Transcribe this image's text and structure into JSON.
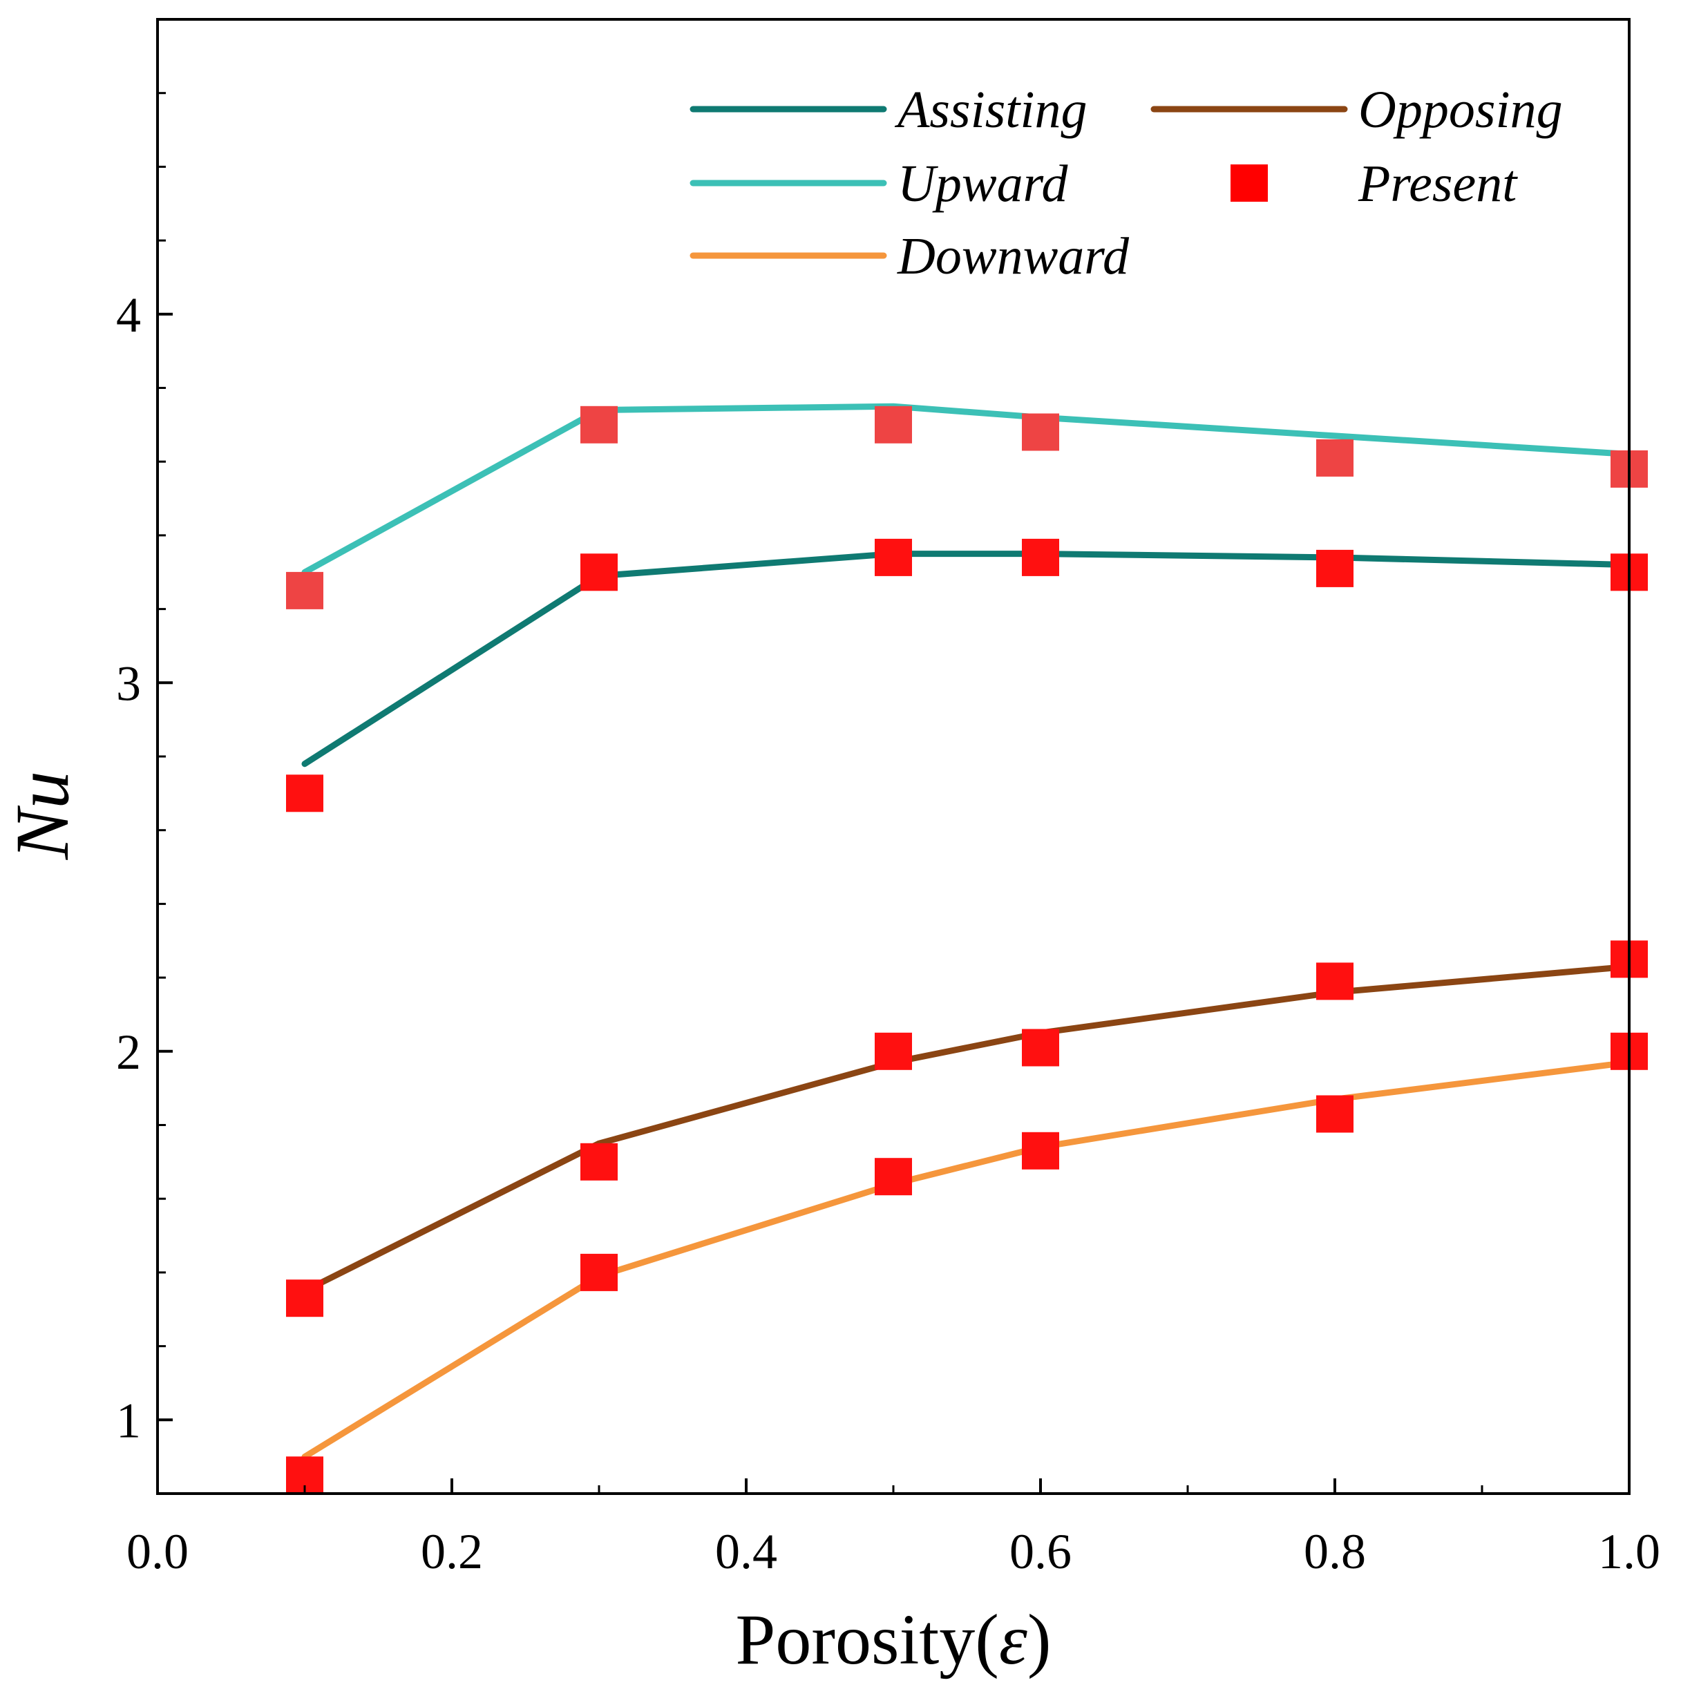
{
  "chart_data": {
    "type": "line",
    "title": "",
    "xlabel": "Porosity(ε)",
    "xlabel_parts": {
      "main": "Porosity(",
      "symbol": "ε",
      "close": ")"
    },
    "ylabel": "Nu",
    "xlim": [
      0.0,
      1.0
    ],
    "ylim": [
      0.8,
      4.8
    ],
    "xticks": [
      0.0,
      0.2,
      0.4,
      0.6,
      0.8,
      1.0
    ],
    "xtick_labels": [
      "0.0",
      "0.2",
      "0.4",
      "0.6",
      "0.8",
      "1.0"
    ],
    "yticks": [
      1,
      2,
      3,
      4
    ],
    "ytick_labels": [
      "1",
      "2",
      "3",
      "4"
    ],
    "x_minor_ticks": [
      0.1,
      0.3,
      0.5,
      0.7,
      0.9
    ],
    "y_minor_ticks": [
      1.2,
      1.4,
      1.6,
      1.8,
      2.2,
      2.4,
      2.6,
      2.8,
      3.2,
      3.4,
      3.6,
      3.8,
      4.2,
      4.4,
      4.6
    ],
    "legend_position": "top-right",
    "x": [
      0.1,
      0.3,
      0.5,
      0.6,
      0.8,
      1.0
    ],
    "series": [
      {
        "name": "Assisting",
        "color": "#0f7a72",
        "kind": "line",
        "values": [
          2.78,
          3.29,
          3.35,
          3.35,
          3.34,
          3.32
        ]
      },
      {
        "name": "Opposing",
        "color": "#8b4513",
        "kind": "line",
        "values": [
          1.35,
          1.75,
          1.97,
          2.05,
          2.16,
          2.23
        ]
      },
      {
        "name": "Upward",
        "color": "#3cc0b6",
        "kind": "line",
        "values": [
          3.3,
          3.74,
          3.75,
          3.72,
          3.67,
          3.62
        ]
      },
      {
        "name": "Downward",
        "color": "#f5963c",
        "kind": "line",
        "values": [
          0.9,
          1.39,
          1.64,
          1.74,
          1.87,
          1.97
        ]
      },
      {
        "name": "Present",
        "color": "#ff0000",
        "kind": "marker",
        "groups": [
          {
            "curve": "Upward",
            "color": "#ee4444",
            "values": [
              3.25,
              3.7,
              3.7,
              3.68,
              3.61,
              3.58
            ]
          },
          {
            "curve": "Assisting",
            "color": "#ff1010",
            "values": [
              2.7,
              3.3,
              3.34,
              3.34,
              3.31,
              3.3
            ]
          },
          {
            "curve": "Opposing",
            "color": "#ff1010",
            "values": [
              1.33,
              1.7,
              2.0,
              2.01,
              2.19,
              2.25
            ]
          },
          {
            "curve": "Downward",
            "color": "#ff1010",
            "values": [
              0.85,
              1.4,
              1.66,
              1.73,
              1.83,
              2.0
            ]
          }
        ]
      }
    ]
  }
}
